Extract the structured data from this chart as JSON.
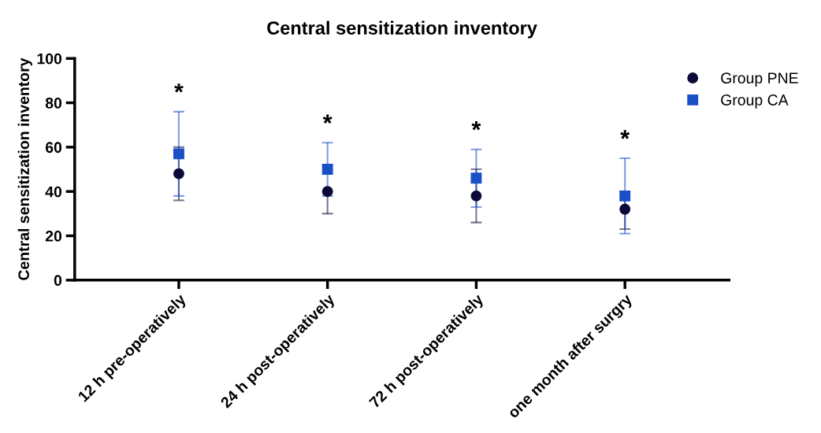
{
  "chart_data": {
    "type": "scatter",
    "title": "Central sensitization inventory",
    "ylabel": "Central sensitization inventory",
    "categories": [
      "12 h pre-operatively",
      "24 h post-operatively",
      "72 h post-operatively",
      "one month after surgry"
    ],
    "series": [
      {
        "name": "Group PNE",
        "color": "#0d0a3a",
        "marker": "circle",
        "values": [
          48,
          40,
          38,
          32
        ],
        "errors": [
          [
            36,
            60
          ],
          [
            30,
            40
          ],
          [
            26,
            50
          ],
          [
            23,
            40
          ]
        ]
      },
      {
        "name": "Group CA",
        "color": "#1a4fc8",
        "marker": "square",
        "values": [
          57,
          50,
          46,
          38
        ],
        "errors": [
          [
            38,
            76
          ],
          [
            38,
            62
          ],
          [
            33,
            59
          ],
          [
            21,
            55
          ]
        ]
      }
    ],
    "annotations": [
      "*",
      "*",
      "*",
      "*"
    ],
    "ylim": [
      0,
      100
    ],
    "yticks": [
      0,
      20,
      40,
      60,
      80,
      100
    ],
    "grid": false,
    "legend": "top right"
  }
}
